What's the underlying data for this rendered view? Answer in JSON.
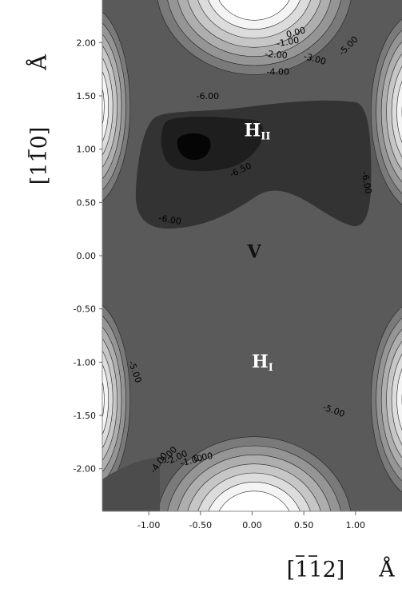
{
  "chart_data": {
    "type": "contour",
    "title": "",
    "x_axis": {
      "label_prefix": "[",
      "label_indices": "112",
      "label_suffix": "]",
      "unit": "Å",
      "range": [
        -1.45,
        1.45
      ],
      "ticks": [
        -1.0,
        -0.5,
        0.0,
        0.5,
        1.0
      ],
      "tick_labels": [
        "-1.00",
        "-0.50",
        "0.00",
        "0.50",
        "1.00"
      ]
    },
    "y_axis": {
      "label_prefix": "[",
      "label_indices": "110",
      "label_suffix": "]",
      "unit": "Å",
      "range": [
        -2.4,
        2.4
      ],
      "ticks": [
        2.0,
        1.5,
        1.0,
        0.5,
        0.0,
        -0.5,
        -1.0,
        -1.5,
        -2.0
      ],
      "tick_labels": [
        "2.00",
        "1.50",
        "1.00",
        "0.50",
        "0.00",
        "-0.50",
        "-1.00",
        "-1.50",
        "-2.00"
      ]
    },
    "contour_levels": [
      -6.5,
      -6.0,
      -5.0,
      -4.0,
      -3.0,
      -2.0,
      -1.0,
      0.0
    ],
    "region_labels": [
      {
        "main": "H",
        "sub": "II",
        "x": 0.05,
        "y": 1.12,
        "color": "#ffffff"
      },
      {
        "main": "V",
        "sub": "",
        "x": 0.02,
        "y": -0.02,
        "color": "#111111"
      },
      {
        "main": "H",
        "sub": "I",
        "x": 0.1,
        "y": -1.05,
        "color": "#ffffff"
      }
    ],
    "contour_labels": [
      {
        "text": "-6.00",
        "x": -0.43,
        "y": 1.47,
        "rotate": 0
      },
      {
        "text": "-6.50",
        "x": -0.1,
        "y": 0.78,
        "rotate": -25
      },
      {
        "text": "-6.00",
        "x": 1.08,
        "y": 0.68,
        "rotate": 80
      },
      {
        "text": "-6.00",
        "x": -0.8,
        "y": 0.31,
        "rotate": 10
      },
      {
        "text": "-5.00",
        "x": 0.95,
        "y": 1.95,
        "rotate": -45
      },
      {
        "text": "-4.00",
        "x": 0.25,
        "y": 1.7,
        "rotate": 0
      },
      {
        "text": "-3.00",
        "x": 0.6,
        "y": 1.82,
        "rotate": 15
      },
      {
        "text": "-2.00",
        "x": 0.23,
        "y": 1.86,
        "rotate": 5
      },
      {
        "text": "-1.00",
        "x": 0.35,
        "y": 1.98,
        "rotate": -10
      },
      {
        "text": "0.00",
        "x": 0.43,
        "y": 2.07,
        "rotate": -15
      },
      {
        "text": "-5.00",
        "x": -1.16,
        "y": -1.1,
        "rotate": 70
      },
      {
        "text": "-5.00",
        "x": 0.78,
        "y": -1.48,
        "rotate": 20
      },
      {
        "text": "-4.00",
        "x": -0.88,
        "y": -1.96,
        "rotate": -55
      },
      {
        "text": "-3.00",
        "x": -0.8,
        "y": -1.9,
        "rotate": -45
      },
      {
        "text": "-2.00",
        "x": -0.72,
        "y": -1.92,
        "rotate": -25
      },
      {
        "text": "-1.00",
        "x": -0.58,
        "y": -1.95,
        "rotate": -15
      },
      {
        "text": "0.00",
        "x": -0.47,
        "y": -1.92,
        "rotate": -10
      }
    ]
  }
}
